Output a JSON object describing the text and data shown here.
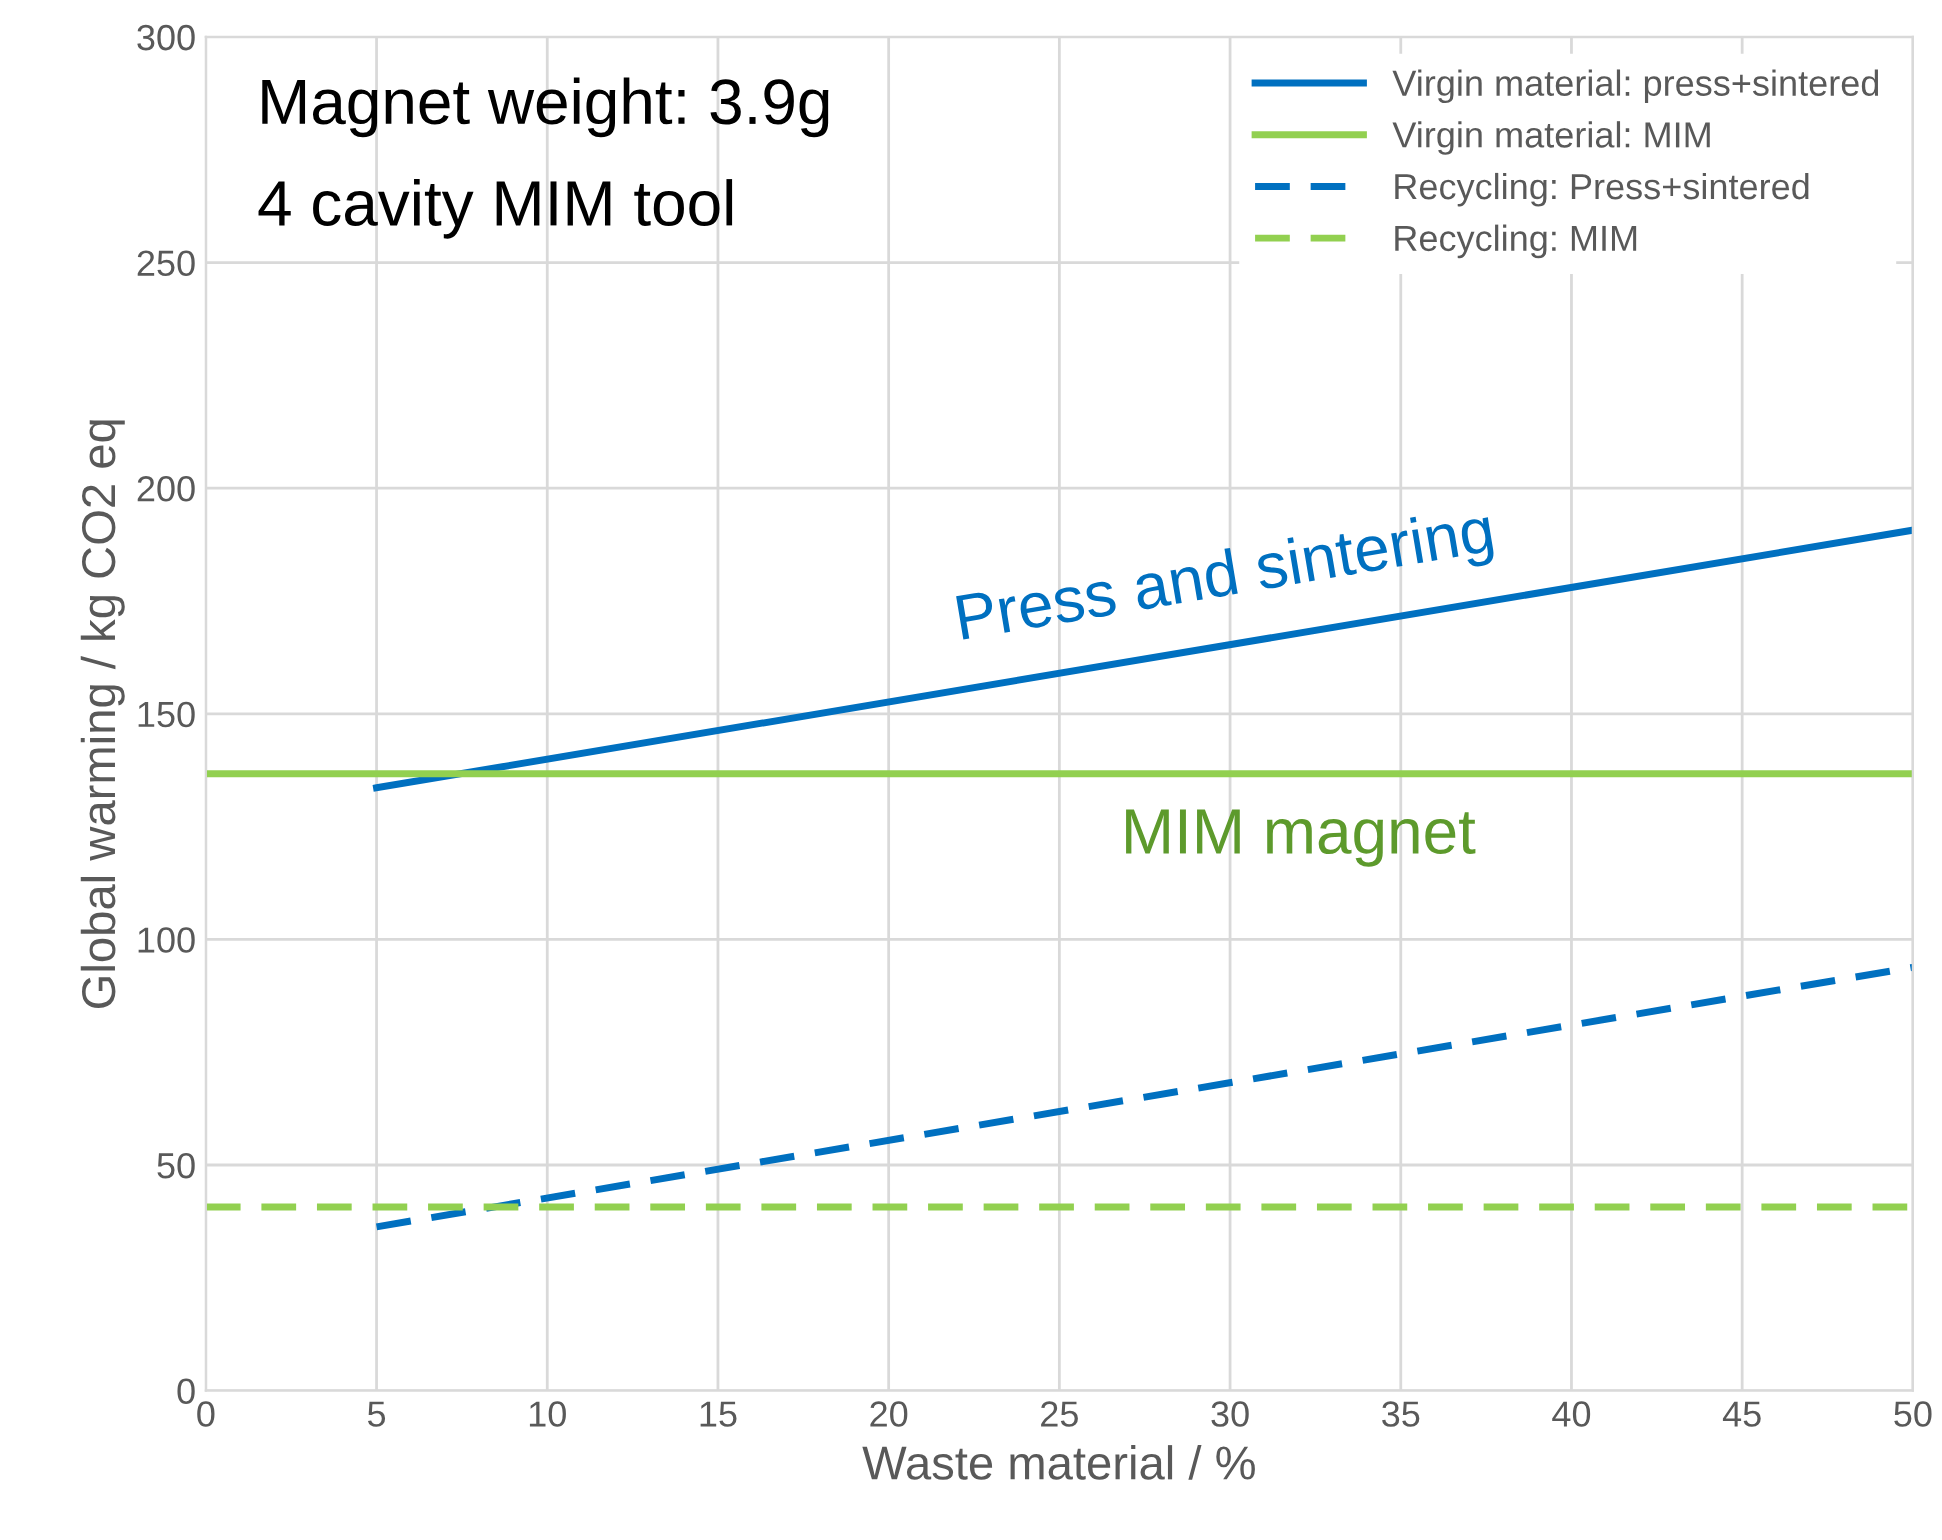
{
  "chart_data": {
    "type": "line",
    "xlabel": "Waste material / %",
    "ylabel": "Global warming / kg CO2 eq",
    "xlim": [
      0,
      50
    ],
    "xticks": [
      0,
      5,
      10,
      15,
      20,
      25,
      30,
      35,
      40,
      45,
      50
    ],
    "ylim": [
      0,
      300
    ],
    "yticks": [
      0,
      50,
      100,
      150,
      200,
      250,
      300
    ],
    "grid": true,
    "legend": "top right",
    "marker": "none",
    "series": [
      {
        "name": "Virgin material: press+sintered",
        "color": "#0070c0",
        "x": [
          5,
          50
        ],
        "values": [
          133.6,
          190.7
        ],
        "line_style": "solid"
      },
      {
        "name": "Virgin material: MIM",
        "color": "#92d050",
        "x": [
          0,
          50
        ],
        "values": [
          136.7,
          136.7
        ],
        "line_style": "solid"
      },
      {
        "name": "Recycling: Press+sintered",
        "color": "#0070c0",
        "x": [
          5,
          50
        ],
        "values": [
          36.3,
          93.8
        ],
        "line_style": "dashed"
      },
      {
        "name": "Recycling: MIM",
        "color": "#92d050",
        "x": [
          0,
          50
        ],
        "values": [
          40.7,
          40.7
        ],
        "line_style": "dashed"
      }
    ],
    "annotations": [
      "Magnet weight: 3.9g",
      "4 cavity MIM tool",
      {
        "text": "Press and sintering",
        "x": 30,
        "y": 166
      },
      {
        "text": "MIM magnet",
        "x": 32,
        "y": 136.7
      }
    ]
  }
}
